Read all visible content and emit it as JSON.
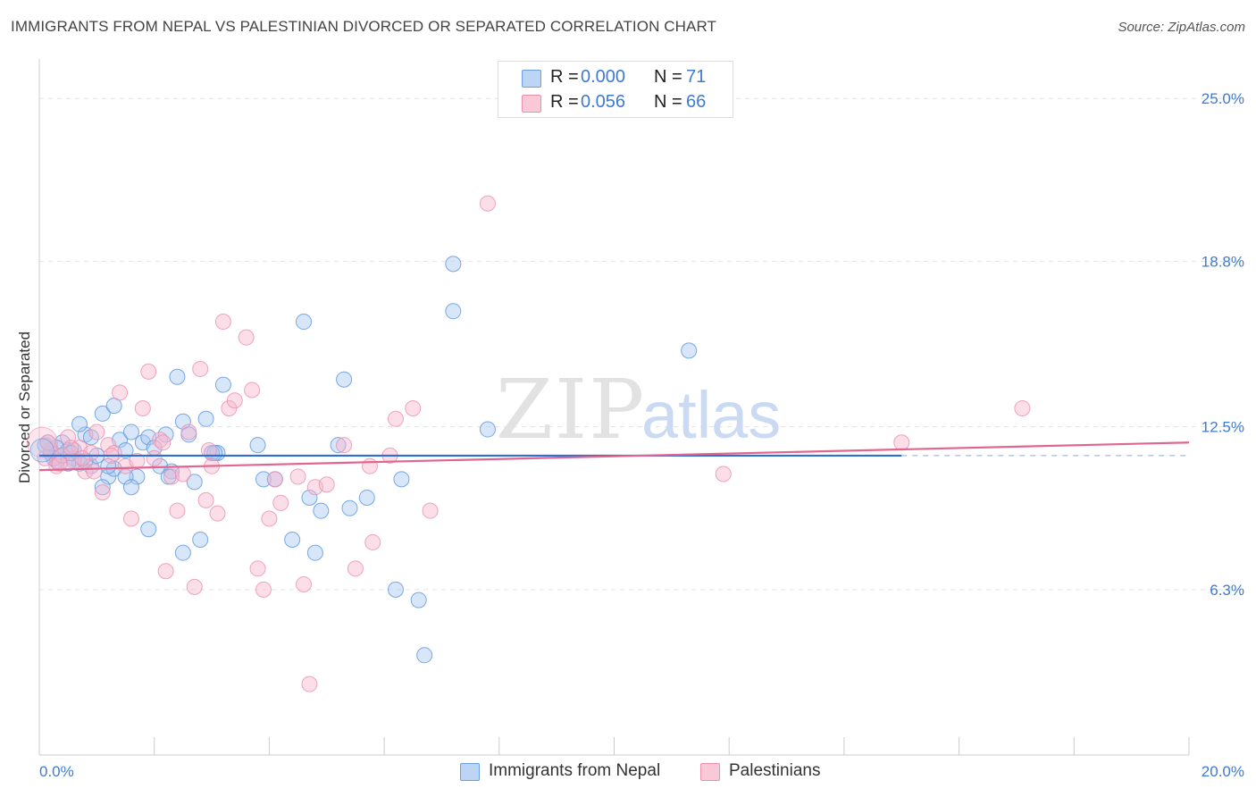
{
  "header": {
    "title": "IMMIGRANTS FROM NEPAL VS PALESTINIAN DIVORCED OR SEPARATED CORRELATION CHART",
    "source": "Source: ZipAtlas.com"
  },
  "watermark": {
    "zip": "ZIP",
    "atlas": "atlas"
  },
  "legend": {
    "rows": [
      {
        "r_label": "R =",
        "r_value": "0.000",
        "n_label": "N =",
        "n_value": "71",
        "color": "#a9c8f2"
      },
      {
        "r_label": "R =",
        "r_value": "0.056",
        "n_label": "N =",
        "n_value": "66",
        "color": "#f6b6cb"
      }
    ]
  },
  "bottom_legend": [
    {
      "label": "Immigrants from Nepal",
      "color": "#a9c8f2"
    },
    {
      "label": "Palestinians",
      "color": "#f6b6cb"
    }
  ],
  "chart_data": {
    "type": "scatter",
    "title": "IMMIGRANTS FROM NEPAL VS PALESTINIAN DIVORCED OR SEPARATED CORRELATION CHART",
    "xlabel": "",
    "ylabel": "Divorced or Separated",
    "xlim": [
      0,
      20
    ],
    "ylim": [
      0,
      26.3
    ],
    "x_tick_labels": [
      "0.0%",
      "20.0%"
    ],
    "y_ticks": [
      6.3,
      12.5,
      18.8,
      25.0
    ],
    "y_tick_labels": [
      "6.3%",
      "12.5%",
      "18.8%",
      "25.0%"
    ],
    "grid": true,
    "legend_position": "top-center",
    "series": [
      {
        "name": "Immigrants from Nepal",
        "color": "#5b95e0",
        "fill": "#a9c8f2",
        "trend_color": "#2f6fce",
        "trend": {
          "x": [
            0.0,
            15.0
          ],
          "y": [
            11.4,
            11.4
          ]
        },
        "points": [
          [
            0.1,
            11.8
          ],
          [
            0.2,
            11.5
          ],
          [
            0.3,
            11.2
          ],
          [
            0.4,
            11.9
          ],
          [
            0.5,
            11.6
          ],
          [
            0.6,
            11.3
          ],
          [
            0.7,
            11.1
          ],
          [
            0.8,
            12.2
          ],
          [
            0.9,
            11.0
          ],
          [
            0.7,
            12.6
          ],
          [
            0.9,
            12.1
          ],
          [
            1.1,
            13.0
          ],
          [
            1.3,
            13.3
          ],
          [
            1.0,
            11.4
          ],
          [
            1.2,
            10.6
          ],
          [
            1.4,
            12.0
          ],
          [
            1.5,
            11.6
          ],
          [
            1.3,
            10.9
          ],
          [
            1.6,
            12.3
          ],
          [
            1.8,
            11.9
          ],
          [
            1.9,
            12.1
          ],
          [
            1.7,
            10.6
          ],
          [
            2.0,
            11.7
          ],
          [
            2.1,
            11.0
          ],
          [
            2.2,
            12.2
          ],
          [
            2.3,
            10.8
          ],
          [
            1.5,
            10.6
          ],
          [
            1.6,
            10.2
          ],
          [
            1.9,
            8.6
          ],
          [
            2.4,
            14.4
          ],
          [
            2.5,
            12.7
          ],
          [
            2.6,
            12.2
          ],
          [
            2.7,
            10.4
          ],
          [
            2.9,
            12.8
          ],
          [
            3.1,
            11.5
          ],
          [
            3.2,
            14.1
          ],
          [
            3.0,
            11.5
          ],
          [
            2.5,
            7.7
          ],
          [
            2.8,
            8.2
          ],
          [
            3.8,
            11.8
          ],
          [
            3.9,
            10.5
          ],
          [
            4.1,
            10.5
          ],
          [
            4.4,
            8.2
          ],
          [
            4.6,
            16.5
          ],
          [
            4.7,
            9.8
          ],
          [
            4.8,
            7.7
          ],
          [
            4.9,
            9.3
          ],
          [
            5.2,
            11.8
          ],
          [
            5.3,
            14.3
          ],
          [
            5.4,
            9.4
          ],
          [
            5.7,
            9.8
          ],
          [
            6.3,
            10.5
          ],
          [
            6.2,
            6.3
          ],
          [
            6.6,
            5.9
          ],
          [
            6.7,
            3.8
          ],
          [
            7.2,
            18.7
          ],
          [
            7.2,
            16.9
          ],
          [
            7.8,
            12.4
          ],
          [
            11.3,
            15.4
          ],
          [
            0.3,
            11.7
          ],
          [
            0.5,
            11.1
          ],
          [
            0.6,
            11.6
          ],
          [
            0.8,
            11.2
          ],
          [
            1.1,
            10.2
          ],
          [
            1.2,
            11.0
          ],
          [
            0.4,
            11.4
          ],
          [
            0.15,
            11.9
          ],
          [
            0.25,
            11.3
          ],
          [
            0.55,
            11.5
          ],
          [
            2.25,
            10.6
          ],
          [
            3.05,
            11.5
          ]
        ]
      },
      {
        "name": "Palestinians",
        "color": "#ec8fb0",
        "fill": "#f6b6cb",
        "trend_color": "#e0668f",
        "trend": {
          "x": [
            0.0,
            20.0
          ],
          "y": [
            10.85,
            11.9
          ]
        },
        "points": [
          [
            0.1,
            11.3
          ],
          [
            0.2,
            11.6
          ],
          [
            0.3,
            11.0
          ],
          [
            0.4,
            11.4
          ],
          [
            0.5,
            12.1
          ],
          [
            0.6,
            11.2
          ],
          [
            0.7,
            11.7
          ],
          [
            0.8,
            10.8
          ],
          [
            0.9,
            11.5
          ],
          [
            1.0,
            12.3
          ],
          [
            1.1,
            10.0
          ],
          [
            1.2,
            11.8
          ],
          [
            1.3,
            11.5
          ],
          [
            1.4,
            13.8
          ],
          [
            1.5,
            11.0
          ],
          [
            1.6,
            9.0
          ],
          [
            1.8,
            13.2
          ],
          [
            1.9,
            14.6
          ],
          [
            2.0,
            11.3
          ],
          [
            2.1,
            12.0
          ],
          [
            2.2,
            7.0
          ],
          [
            2.3,
            10.6
          ],
          [
            2.4,
            9.3
          ],
          [
            2.5,
            10.7
          ],
          [
            2.6,
            12.3
          ],
          [
            2.7,
            6.4
          ],
          [
            2.8,
            14.7
          ],
          [
            2.9,
            9.7
          ],
          [
            3.0,
            11.0
          ],
          [
            3.1,
            9.2
          ],
          [
            3.2,
            16.5
          ],
          [
            3.3,
            13.2
          ],
          [
            3.4,
            13.5
          ],
          [
            3.6,
            15.9
          ],
          [
            3.7,
            13.9
          ],
          [
            3.8,
            7.1
          ],
          [
            3.9,
            6.3
          ],
          [
            4.0,
            9.0
          ],
          [
            4.2,
            9.6
          ],
          [
            4.5,
            10.6
          ],
          [
            4.6,
            6.5
          ],
          [
            4.7,
            2.7
          ],
          [
            4.8,
            10.2
          ],
          [
            5.0,
            10.3
          ],
          [
            5.3,
            11.8
          ],
          [
            5.5,
            7.1
          ],
          [
            5.8,
            8.1
          ],
          [
            6.1,
            11.4
          ],
          [
            6.2,
            12.8
          ],
          [
            6.5,
            13.2
          ],
          [
            6.8,
            9.3
          ],
          [
            7.8,
            21.0
          ],
          [
            11.9,
            10.7
          ],
          [
            15.0,
            11.9
          ],
          [
            17.1,
            13.2
          ],
          [
            0.15,
            11.9
          ],
          [
            0.35,
            11.1
          ],
          [
            0.55,
            11.7
          ],
          [
            0.75,
            11.3
          ],
          [
            0.95,
            10.8
          ],
          [
            1.25,
            11.4
          ],
          [
            1.7,
            11.2
          ],
          [
            2.15,
            11.9
          ],
          [
            2.95,
            11.6
          ],
          [
            4.1,
            10.5
          ],
          [
            5.75,
            11.0
          ]
        ]
      }
    ]
  }
}
